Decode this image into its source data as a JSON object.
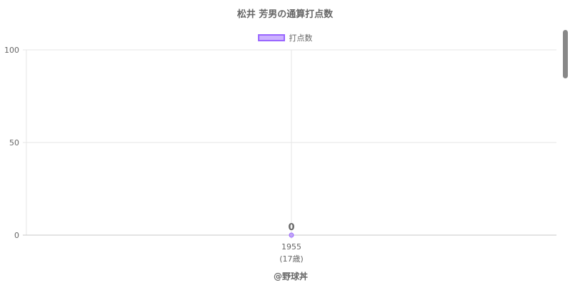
{
  "chart_data": {
    "type": "line",
    "title": "松井 芳男の通算打点数",
    "categories": [
      "1955"
    ],
    "category_sublabels": [
      "(17歳)"
    ],
    "series": [
      {
        "name": "打点数",
        "values": [
          0
        ],
        "color": "#9966ff"
      }
    ],
    "data_labels": [
      "0"
    ],
    "ylim": [
      0,
      100
    ],
    "yticks": [
      "0",
      "50",
      "100"
    ],
    "grid": true,
    "legend": "top"
  },
  "credit": "@野球丼"
}
